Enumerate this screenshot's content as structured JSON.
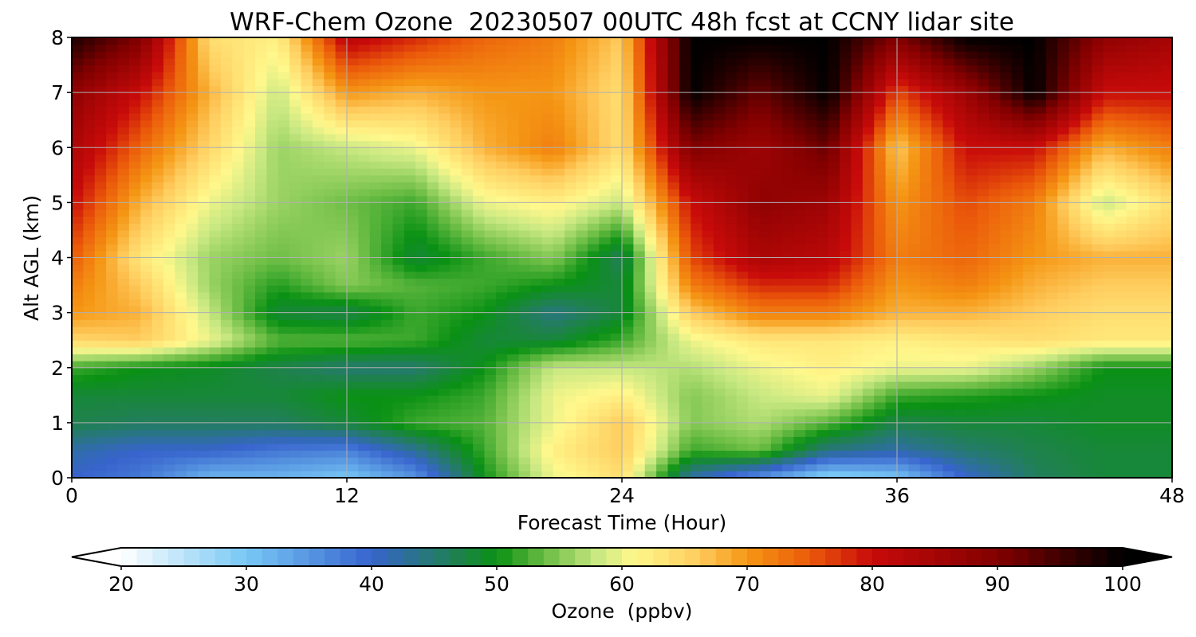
{
  "chart_data": {
    "type": "heatmap",
    "title": "WRF-Chem Ozone  20230507 00UTC 48h fcst at CCNY lidar site",
    "xlabel": "Forecast Time (Hour)",
    "ylabel": "Alt AGL (km)",
    "xlim": [
      0,
      48
    ],
    "ylim": [
      0,
      8
    ],
    "xticks": [
      0,
      12,
      24,
      36,
      48
    ],
    "yticks": [
      0,
      1,
      2,
      3,
      4,
      5,
      6,
      7,
      8
    ],
    "grid": true,
    "colorbar": {
      "label": "Ozone  (ppbv)",
      "min": 20,
      "max": 100,
      "ticks": [
        20,
        30,
        40,
        50,
        60,
        70,
        80,
        90,
        100
      ],
      "extend": "both",
      "placement": "bottom"
    },
    "x": [
      0,
      3,
      6,
      9,
      12,
      15,
      18,
      21,
      24,
      27,
      30,
      33,
      36,
      39,
      42,
      45,
      48
    ],
    "y": [
      0,
      0.5,
      1,
      1.5,
      2,
      2.5,
      3,
      3.5,
      4,
      5,
      6,
      7,
      8
    ],
    "values": [
      [
        40,
        38,
        32,
        32,
        30,
        35,
        50,
        60,
        64,
        42,
        35,
        28,
        30,
        40,
        46,
        48,
        48
      ],
      [
        42,
        40,
        40,
        38,
        37,
        43,
        52,
        62,
        66,
        52,
        54,
        44,
        42,
        45,
        47,
        48,
        48
      ],
      [
        47,
        46,
        46,
        46,
        48,
        52,
        53,
        60,
        66,
        55,
        57,
        53,
        47,
        48,
        48,
        49,
        49
      ],
      [
        48,
        48,
        48,
        48,
        50,
        50,
        52,
        60,
        62,
        55,
        58,
        60,
        52,
        51,
        50,
        49,
        49
      ],
      [
        52,
        50,
        49,
        47,
        45,
        45,
        50,
        58,
        58,
        57,
        60,
        62,
        60,
        60,
        56,
        50,
        50
      ],
      [
        65,
        66,
        60,
        53,
        53,
        52,
        48,
        48,
        52,
        60,
        63,
        63,
        62,
        63,
        64,
        63,
        63
      ],
      [
        70,
        68,
        58,
        48,
        47,
        52,
        50,
        44,
        48,
        66,
        72,
        72,
        68,
        68,
        66,
        64,
        64
      ],
      [
        72,
        66,
        56,
        51,
        55,
        53,
        52,
        50,
        48,
        72,
        78,
        78,
        70,
        72,
        68,
        66,
        66
      ],
      [
        75,
        63,
        56,
        54,
        56,
        48,
        52,
        55,
        46,
        76,
        84,
        82,
        72,
        74,
        70,
        68,
        68
      ],
      [
        80,
        68,
        60,
        56,
        54,
        52,
        60,
        62,
        58,
        80,
        88,
        86,
        70,
        76,
        72,
        58,
        64
      ],
      [
        84,
        74,
        65,
        56,
        58,
        60,
        68,
        72,
        64,
        90,
        86,
        92,
        66,
        80,
        80,
        68,
        72
      ],
      [
        88,
        80,
        68,
        58,
        70,
        68,
        70,
        70,
        64,
        100,
        92,
        100,
        76,
        86,
        100,
        80,
        80
      ],
      [
        98,
        90,
        64,
        62,
        82,
        78,
        74,
        72,
        66,
        100,
        100,
        100,
        90,
        100,
        100,
        88,
        85
      ]
    ]
  }
}
